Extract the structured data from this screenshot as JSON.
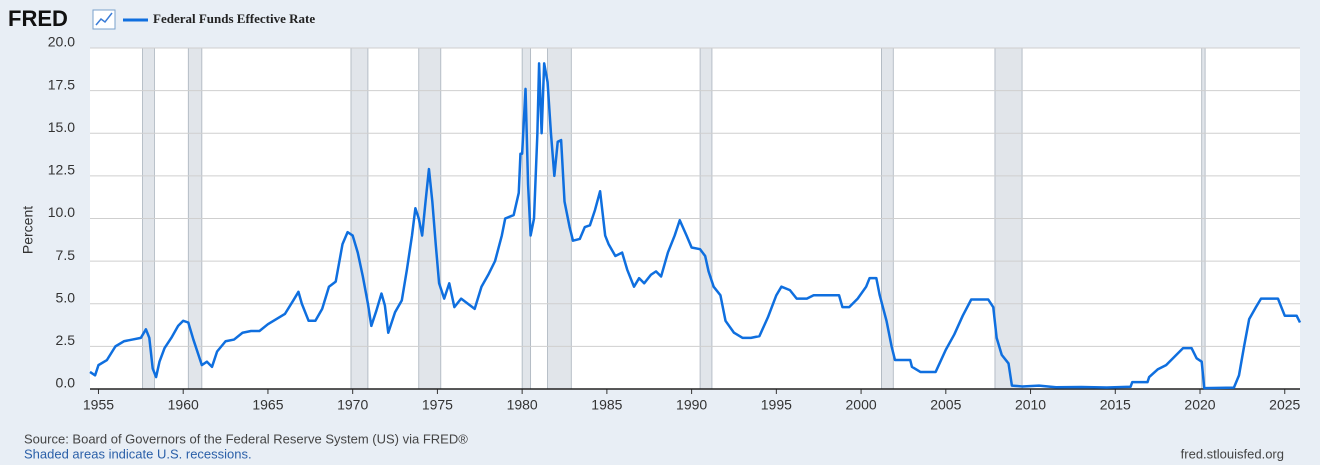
{
  "brand": "FRED",
  "chart_data": {
    "type": "line",
    "y_label": "Percent",
    "x": [
      1954.5,
      1954.8,
      1955.0,
      1955.5,
      1956.0,
      1956.5,
      1957.0,
      1957.5,
      1957.8,
      1958.0,
      1958.2,
      1958.4,
      1958.6,
      1958.9,
      1959.3,
      1959.7,
      1960.0,
      1960.3,
      1960.6,
      1960.9,
      1961.1,
      1961.4,
      1961.7,
      1962.0,
      1962.5,
      1963.0,
      1963.5,
      1964.0,
      1964.5,
      1965.0,
      1965.5,
      1966.0,
      1966.5,
      1966.8,
      1967.0,
      1967.4,
      1967.8,
      1968.2,
      1968.6,
      1969.0,
      1969.4,
      1969.7,
      1970.0,
      1970.3,
      1970.6,
      1970.9,
      1971.1,
      1971.4,
      1971.7,
      1971.9,
      1972.1,
      1972.5,
      1972.9,
      1973.2,
      1973.5,
      1973.7,
      1973.9,
      1974.1,
      1974.3,
      1974.5,
      1974.7,
      1974.9,
      1975.1,
      1975.4,
      1975.7,
      1976.0,
      1976.4,
      1976.8,
      1977.2,
      1977.6,
      1978.0,
      1978.4,
      1978.8,
      1979.0,
      1979.5,
      1979.8,
      1979.9,
      1980.0,
      1980.2,
      1980.35,
      1980.5,
      1980.7,
      1980.9,
      1981.0,
      1981.15,
      1981.3,
      1981.5,
      1981.7,
      1981.9,
      1982.1,
      1982.3,
      1982.5,
      1982.8,
      1983.0,
      1983.4,
      1983.7,
      1984.0,
      1984.3,
      1984.6,
      1984.9,
      1985.1,
      1985.5,
      1985.9,
      1986.2,
      1986.6,
      1986.9,
      1987.2,
      1987.6,
      1987.9,
      1988.2,
      1988.6,
      1989.0,
      1989.3,
      1989.7,
      1990.0,
      1990.5,
      1990.8,
      1991.0,
      1991.3,
      1991.7,
      1992.0,
      1992.5,
      1993.0,
      1993.5,
      1994.0,
      1994.5,
      1995.0,
      1995.3,
      1995.8,
      1996.2,
      1996.8,
      1997.2,
      1998.0,
      1998.7,
      1998.9,
      1999.3,
      1999.8,
      2000.3,
      2000.5,
      2000.9,
      2001.1,
      2001.5,
      2001.8,
      2002.0,
      2002.9,
      2003.0,
      2003.5,
      2004.4,
      2005.0,
      2005.5,
      2006.0,
      2006.5,
      2007.5,
      2007.8,
      2008.0,
      2008.3,
      2008.7,
      2008.9,
      2009.5,
      2010.5,
      2011.5,
      2013.0,
      2014.5,
      2015.9,
      2016.0,
      2016.9,
      2017.0,
      2017.5,
      2018.0,
      2018.5,
      2019.0,
      2019.5,
      2019.8,
      2020.1,
      2020.25,
      2022.0,
      2022.3,
      2022.6,
      2022.9,
      2023.3,
      2023.6,
      2024.6,
      2024.8,
      2025.0,
      2025.7,
      2025.9
    ],
    "series": [
      {
        "name": "Federal Funds Effective Rate",
        "color": "#0f6fdf",
        "values": [
          1.0,
          0.8,
          1.4,
          1.7,
          2.5,
          2.8,
          2.9,
          3.0,
          3.5,
          3.0,
          1.2,
          0.7,
          1.6,
          2.4,
          3.0,
          3.7,
          4.0,
          3.9,
          2.9,
          2.0,
          1.4,
          1.6,
          1.3,
          2.2,
          2.8,
          2.9,
          3.3,
          3.4,
          3.4,
          3.8,
          4.1,
          4.4,
          5.2,
          5.7,
          5.0,
          4.0,
          4.0,
          4.7,
          6.0,
          6.3,
          8.5,
          9.2,
          9.0,
          8.0,
          6.6,
          5.0,
          3.7,
          4.6,
          5.6,
          4.9,
          3.3,
          4.5,
          5.2,
          7.0,
          9.0,
          10.6,
          10.0,
          9.0,
          11.0,
          12.9,
          11.0,
          8.5,
          6.2,
          5.3,
          6.2,
          4.8,
          5.3,
          5.0,
          4.7,
          6.0,
          6.7,
          7.5,
          9.0,
          10.0,
          10.2,
          11.5,
          13.8,
          13.8,
          17.6,
          12.0,
          9.0,
          10.0,
          15.0,
          19.1,
          15.0,
          19.1,
          18.0,
          15.0,
          12.5,
          14.5,
          14.6,
          11.0,
          9.5,
          8.7,
          8.8,
          9.5,
          9.6,
          10.5,
          11.6,
          9.0,
          8.5,
          7.8,
          8.0,
          7.0,
          6.0,
          6.5,
          6.2,
          6.7,
          6.9,
          6.6,
          8.0,
          9.0,
          9.9,
          9.0,
          8.3,
          8.2,
          7.8,
          6.9,
          6.0,
          5.5,
          4.0,
          3.3,
          3.0,
          3.0,
          3.1,
          4.2,
          5.5,
          6.0,
          5.8,
          5.3,
          5.3,
          5.5,
          5.5,
          5.5,
          4.8,
          4.8,
          5.3,
          6.0,
          6.5,
          6.5,
          5.5,
          4.0,
          2.5,
          1.7,
          1.7,
          1.3,
          1.0,
          1.0,
          2.3,
          3.2,
          4.3,
          5.25,
          5.25,
          4.8,
          3.0,
          2.0,
          1.5,
          0.2,
          0.15,
          0.2,
          0.1,
          0.12,
          0.09,
          0.13,
          0.4,
          0.4,
          0.7,
          1.15,
          1.4,
          1.9,
          2.4,
          2.4,
          1.8,
          1.6,
          0.05,
          0.08,
          0.8,
          2.5,
          4.1,
          4.8,
          5.3,
          5.3,
          4.8,
          4.3,
          4.3,
          3.9
        ]
      }
    ],
    "recessions": [
      [
        1957.6,
        1958.3
      ],
      [
        1960.3,
        1961.1
      ],
      [
        1969.9,
        1970.9
      ],
      [
        1973.9,
        1975.2
      ],
      [
        1980.0,
        1980.5
      ],
      [
        1981.5,
        1982.9
      ],
      [
        1990.5,
        1991.2
      ],
      [
        2001.2,
        2001.9
      ],
      [
        2007.9,
        2009.5
      ],
      [
        2020.1,
        2020.3
      ]
    ],
    "xlim": [
      1954.5,
      2025.9
    ],
    "xticks": [
      1955,
      1960,
      1965,
      1970,
      1975,
      1980,
      1985,
      1990,
      1995,
      2000,
      2005,
      2010,
      2015,
      2020,
      2025
    ],
    "ylim": [
      0,
      20
    ],
    "yticks": [
      {
        "value": 0,
        "label": "0.0"
      },
      {
        "value": 2.5,
        "label": "2.5"
      },
      {
        "value": 5,
        "label": "5.0"
      },
      {
        "value": 7.5,
        "label": "7.5"
      },
      {
        "value": 10,
        "label": "10.0"
      },
      {
        "value": 12.5,
        "label": "12.5"
      },
      {
        "value": 15,
        "label": "15.0"
      },
      {
        "value": 17.5,
        "label": "17.5"
      },
      {
        "value": 20,
        "label": "20.0"
      }
    ],
    "grid": true
  },
  "footer": {
    "source": "Source: Board of Governors of the Federal Reserve System (US) via FRED®",
    "note": "Shaded areas indicate U.S. recessions.",
    "site": "fred.stlouisfed.org"
  }
}
